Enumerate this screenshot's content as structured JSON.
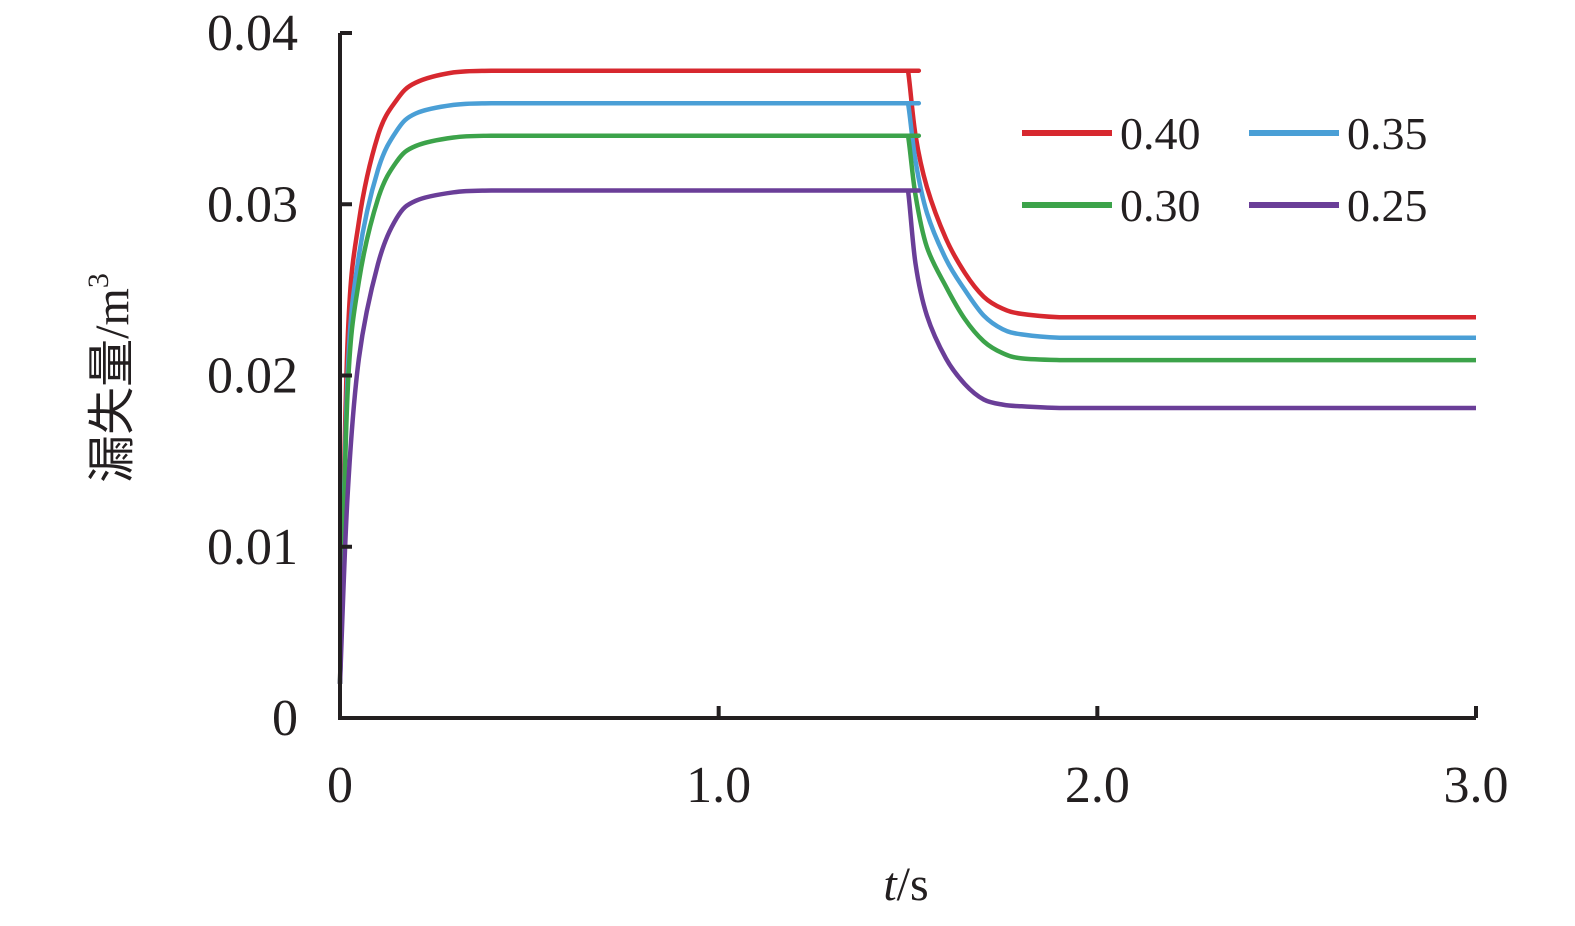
{
  "chart_data": {
    "type": "line",
    "xlabel_var": "t",
    "xlabel_unit": "/s",
    "ylabel_main": "漏失量/m",
    "ylabel_sup": "3",
    "xlim": [
      0,
      3.0
    ],
    "ylim": [
      0,
      0.04
    ],
    "x_ticks": [
      0,
      1.0,
      2.0,
      3.0
    ],
    "x_tick_labels": [
      "0",
      "1.0",
      "2.0",
      "3.0"
    ],
    "y_ticks": [
      0,
      0.01,
      0.02,
      0.03,
      0.04
    ],
    "y_tick_labels": [
      "0",
      "0.01",
      "0.02",
      "0.03",
      "0.04"
    ],
    "grid": false,
    "legend_position": "top-right",
    "series": [
      {
        "name": "0.40",
        "color": "#d7282f",
        "x": [
          0,
          0.02,
          0.05,
          0.1,
          0.15,
          0.2,
          0.3,
          0.4,
          0.6,
          1.0,
          1.49,
          1.5,
          1.52,
          1.55,
          1.6,
          1.65,
          1.7,
          1.75,
          1.8,
          1.9,
          2.0,
          2.5,
          3.0
        ],
        "values": [
          0.002,
          0.022,
          0.029,
          0.034,
          0.0361,
          0.0371,
          0.0377,
          0.0378,
          0.0378,
          0.0378,
          0.0378,
          0.0378,
          0.034,
          0.031,
          0.028,
          0.026,
          0.0246,
          0.0239,
          0.0236,
          0.0234,
          0.0234,
          0.0234,
          0.0234
        ]
      },
      {
        "name": "0.35",
        "color": "#4a9fd6",
        "x": [
          0,
          0.02,
          0.05,
          0.1,
          0.15,
          0.2,
          0.3,
          0.4,
          0.6,
          1.0,
          1.49,
          1.5,
          1.52,
          1.55,
          1.6,
          1.65,
          1.7,
          1.75,
          1.8,
          1.9,
          2.0,
          2.5,
          3.0
        ],
        "values": [
          0.002,
          0.02,
          0.027,
          0.032,
          0.0343,
          0.0353,
          0.0358,
          0.0359,
          0.0359,
          0.0359,
          0.0359,
          0.0359,
          0.0325,
          0.0295,
          0.0268,
          0.025,
          0.0235,
          0.0227,
          0.0224,
          0.0222,
          0.0222,
          0.0222,
          0.0222
        ]
      },
      {
        "name": "0.30",
        "color": "#3ca34a",
        "x": [
          0,
          0.02,
          0.05,
          0.1,
          0.15,
          0.2,
          0.3,
          0.4,
          0.6,
          1.0,
          1.49,
          1.5,
          1.52,
          1.55,
          1.6,
          1.65,
          1.7,
          1.75,
          1.8,
          1.9,
          2.0,
          2.5,
          3.0
        ],
        "values": [
          0.002,
          0.019,
          0.0255,
          0.0303,
          0.0325,
          0.0334,
          0.0339,
          0.034,
          0.034,
          0.034,
          0.034,
          0.034,
          0.0305,
          0.0275,
          0.0252,
          0.0233,
          0.022,
          0.0213,
          0.021,
          0.0209,
          0.0209,
          0.0209,
          0.0209
        ]
      },
      {
        "name": "0.25",
        "color": "#6a3e98",
        "x": [
          0,
          0.02,
          0.05,
          0.1,
          0.15,
          0.2,
          0.3,
          0.4,
          0.6,
          1.0,
          1.49,
          1.5,
          1.52,
          1.55,
          1.6,
          1.65,
          1.7,
          1.75,
          1.8,
          1.9,
          2.0,
          2.5,
          3.0
        ],
        "values": [
          0.002,
          0.013,
          0.021,
          0.0265,
          0.0292,
          0.0302,
          0.0307,
          0.0308,
          0.0308,
          0.0308,
          0.0308,
          0.0308,
          0.0265,
          0.0235,
          0.021,
          0.0195,
          0.0186,
          0.0183,
          0.0182,
          0.0181,
          0.0181,
          0.0181,
          0.0181
        ]
      }
    ]
  }
}
